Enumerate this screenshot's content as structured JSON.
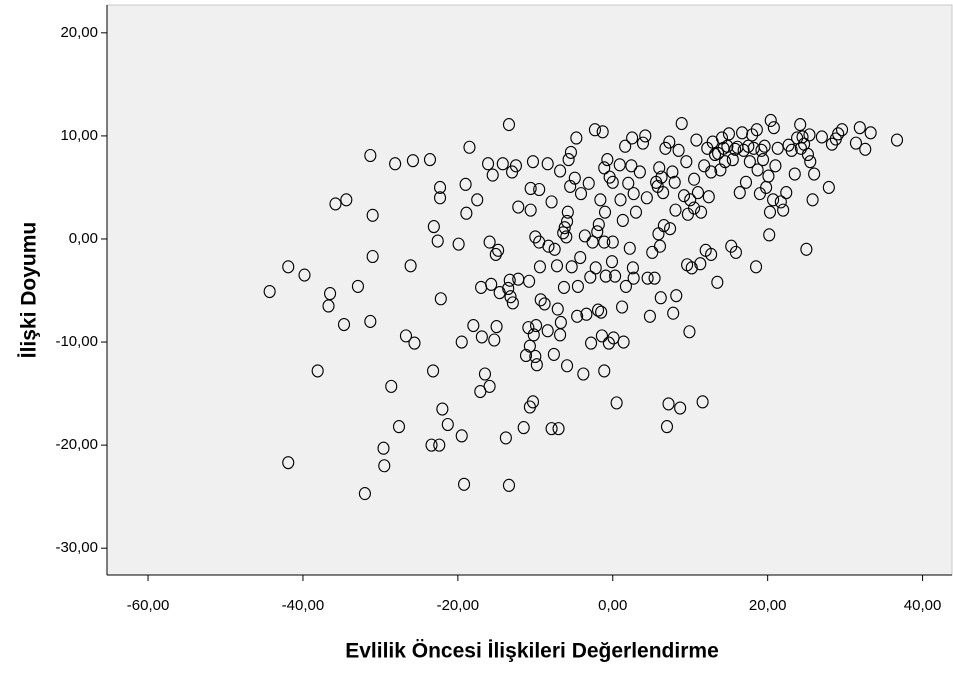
{
  "chart_data": {
    "type": "scatter",
    "x_label": "Evlilik Öncesi İlişkileri Değerlendirme",
    "y_label": "İlişki Doyumu",
    "color": "#000000",
    "background": "#f0f0f0",
    "xlim": [
      -65.3,
      43.8
    ],
    "ylim": [
      -32.6,
      22.7
    ],
    "xticks": [
      {
        "value": -60,
        "label": "-60,00"
      },
      {
        "value": -40,
        "label": "-40,00"
      },
      {
        "value": -20,
        "label": "-20,00"
      },
      {
        "value": 0,
        "label": "0,00"
      },
      {
        "value": 20,
        "label": "20,00"
      },
      {
        "value": 40,
        "label": "40,00"
      }
    ],
    "yticks": [
      {
        "value": -30,
        "label": "-30,00"
      },
      {
        "value": -20,
        "label": "-20,00"
      },
      {
        "value": -10,
        "label": "-10,00"
      },
      {
        "value": 0,
        "label": "0,00"
      },
      {
        "value": 10,
        "label": "10,00"
      },
      {
        "value": 20,
        "label": "20,00"
      }
    ],
    "x": [
      -44.3,
      -41.9,
      -39.8,
      -41.9,
      -38.1,
      -36.7,
      -36.5,
      -35.8,
      -34.4,
      -34.7,
      -32.9,
      -32.0,
      -31.3,
      -31.3,
      -31.0,
      -31.0,
      -29.6,
      -29.5,
      -28.6,
      -28.1,
      -27.6,
      -26.7,
      -26.1,
      -25.8,
      -25.6,
      -23.6,
      -23.4,
      -23.2,
      -23.1,
      -22.6,
      -22.4,
      -22.3,
      -22.3,
      -22.2,
      -22.0,
      -21.3,
      -19.9,
      -19.5,
      -19.5,
      -19.2,
      -19.0,
      -18.9,
      -18.5,
      -18.0,
      -17.5,
      -17.1,
      -17.0,
      -16.9,
      -16.5,
      -16.1,
      -15.9,
      -15.9,
      -15.7,
      -15.5,
      -15.3,
      -15.1,
      -15.0,
      -14.8,
      -14.6,
      -14.2,
      -13.8,
      -13.5,
      -13.4,
      -13.4,
      -13.3,
      -13.2,
      -13.0,
      -12.9,
      -12.5,
      -12.2,
      -12.2,
      -11.5,
      -11.2,
      -10.9,
      -10.8,
      -10.7,
      -10.7,
      -10.6,
      -10.6,
      -10.3,
      -10.3,
      -10.2,
      -10.0,
      -10.0,
      -9.9,
      -9.8,
      -9.5,
      -9.5,
      -9.4,
      -9.3,
      -8.8,
      -8.4,
      -8.4,
      -8.3,
      -7.9,
      -7.9,
      -7.6,
      -7.5,
      -7.2,
      -7.1,
      -7.0,
      -6.8,
      -6.8,
      -6.7,
      -6.4,
      -6.3,
      -6.2,
      -6.0,
      -5.9,
      -5.9,
      -5.8,
      -5.7,
      -5.5,
      -5.4,
      -5.3,
      -4.9,
      -4.7,
      -4.6,
      -4.5,
      -4.2,
      -4.1,
      -3.8,
      -3.6,
      -3.4,
      -3.1,
      -2.9,
      -2.8,
      -2.6,
      -2.3,
      -2.2,
      -2.0,
      -1.9,
      -1.8,
      -1.6,
      -1.5,
      -1.4,
      -1.3,
      -1.1,
      -1.1,
      -1.1,
      -1.0,
      -0.9,
      -0.7,
      -0.5,
      -0.4,
      -0.1,
      0.0,
      0.0,
      0.1,
      0.3,
      0.5,
      0.9,
      1.0,
      1.2,
      1.3,
      1.4,
      1.6,
      1.7,
      2.0,
      2.2,
      2.4,
      2.5,
      2.6,
      2.7,
      2.7,
      3.0,
      3.5,
      3.9,
      4.2,
      4.4,
      4.5,
      4.8,
      5.1,
      5.4,
      5.6,
      5.8,
      5.9,
      6.0,
      6.1,
      6.2,
      6.3,
      6.5,
      6.6,
      6.8,
      7.0,
      7.2,
      7.3,
      7.4,
      7.7,
      7.8,
      8.0,
      8.1,
      8.2,
      8.5,
      8.7,
      8.9,
      9.2,
      9.5,
      9.6,
      9.7,
      9.9,
      10.0,
      10.2,
      10.5,
      10.5,
      10.8,
      11.0,
      11.3,
      11.4,
      11.6,
      11.8,
      12.0,
      12.2,
      12.4,
      12.7,
      12.7,
      12.9,
      13.2,
      13.5,
      13.6,
      13.9,
      14.1,
      14.3,
      14.5,
      14.8,
      15.0,
      15.3,
      15.5,
      15.8,
      15.9,
      16.1,
      16.4,
      16.7,
      16.9,
      17.2,
      17.5,
      17.7,
      18.0,
      18.2,
      18.5,
      18.6,
      18.7,
      19.0,
      19.2,
      19.4,
      19.6,
      19.8,
      20.1,
      20.2,
      20.3,
      20.4,
      20.7,
      20.8,
      21.0,
      21.3,
      21.7,
      22.0,
      22.4,
      22.7,
      23.1,
      23.5,
      23.8,
      24.2,
      24.3,
      24.5,
      24.7,
      25.0,
      25.2,
      25.4,
      25.5,
      25.8,
      26.0,
      27.0,
      27.9,
      28.3,
      28.8,
      29.1,
      29.6,
      31.4,
      31.9,
      32.6,
      33.3,
      36.7
    ],
    "values": [
      -5.1,
      -2.7,
      -3.5,
      -21.7,
      -12.8,
      -6.5,
      -5.3,
      3.4,
      3.8,
      -8.3,
      -4.6,
      -24.7,
      8.1,
      -8.0,
      2.3,
      -1.7,
      -20.3,
      -22.0,
      -14.3,
      7.3,
      -18.2,
      -9.4,
      -2.6,
      7.6,
      -10.1,
      7.7,
      -20.0,
      -12.8,
      1.2,
      -0.2,
      -20.0,
      5.0,
      4.0,
      -5.8,
      -16.5,
      -18.0,
      -0.5,
      -10.0,
      -19.1,
      -23.8,
      5.3,
      2.5,
      8.9,
      -8.4,
      3.8,
      -14.8,
      -4.7,
      -9.5,
      -13.1,
      7.3,
      -14.3,
      -0.3,
      -4.4,
      6.2,
      -9.8,
      -1.5,
      -8.5,
      -1.1,
      -5.2,
      7.3,
      -19.3,
      -4.8,
      11.1,
      -23.9,
      -4.0,
      -5.6,
      6.5,
      -6.2,
      7.1,
      3.1,
      -3.9,
      -18.3,
      -11.3,
      -8.6,
      -4.1,
      -10.4,
      -16.3,
      2.8,
      4.9,
      7.5,
      -15.8,
      -9.3,
      -11.4,
      0.2,
      -8.4,
      -12.2,
      4.8,
      -0.3,
      -2.7,
      -5.9,
      -6.3,
      7.3,
      -8.9,
      -0.7,
      3.6,
      -18.4,
      -11.2,
      -1.0,
      -2.6,
      -6.8,
      -18.4,
      -9.3,
      6.6,
      -8.1,
      0.6,
      -4.7,
      1.1,
      0.2,
      1.7,
      -12.3,
      2.6,
      7.7,
      5.1,
      8.4,
      -2.7,
      5.9,
      9.8,
      -7.5,
      -4.6,
      -1.8,
      4.4,
      -13.1,
      0.3,
      -7.3,
      5.4,
      -3.7,
      -10.1,
      -0.3,
      10.6,
      -2.8,
      0.7,
      -6.9,
      1.4,
      3.8,
      -7.1,
      -9.4,
      10.4,
      -0.3,
      6.9,
      -12.8,
      2.6,
      -3.6,
      7.7,
      -10.1,
      6.0,
      -2.2,
      5.5,
      -0.3,
      -9.6,
      -3.6,
      -15.9,
      7.2,
      3.8,
      -6.6,
      1.8,
      -10.0,
      9.0,
      -4.6,
      5.4,
      -0.9,
      7.1,
      9.8,
      -2.8,
      -3.8,
      4.4,
      2.6,
      6.5,
      9.3,
      10.0,
      4.0,
      -3.8,
      -7.5,
      -1.3,
      -3.8,
      5.5,
      5.1,
      0.5,
      6.9,
      -0.7,
      -5.7,
      6.0,
      4.5,
      1.3,
      8.8,
      -18.2,
      -16.0,
      9.4,
      1.0,
      6.5,
      -7.2,
      5.5,
      2.8,
      -5.5,
      8.6,
      -16.4,
      11.2,
      4.2,
      7.5,
      -2.5,
      2.4,
      -9.0,
      3.8,
      -2.8,
      5.8,
      3.0,
      9.6,
      4.5,
      -2.4,
      2.6,
      -15.8,
      7.1,
      -1.1,
      8.8,
      4.1,
      6.5,
      -1.5,
      9.4,
      8.2,
      -4.2,
      8.3,
      6.7,
      9.8,
      8.8,
      7.5,
      9.0,
      10.2,
      -0.7,
      7.7,
      8.7,
      -1.3,
      8.9,
      4.5,
      10.3,
      8.6,
      5.5,
      9.0,
      7.5,
      10.1,
      8.8,
      -2.7,
      10.6,
      6.7,
      4.4,
      8.6,
      7.7,
      9.0,
      5.0,
      6.1,
      0.4,
      2.6,
      11.5,
      3.8,
      10.8,
      7.1,
      8.8,
      3.6,
      2.8,
      4.5,
      9.1,
      8.6,
      6.3,
      9.8,
      11.1,
      8.8,
      9.9,
      9.2,
      -1.0,
      8.2,
      10.1,
      7.5,
      3.8,
      6.3,
      9.9,
      5.0,
      9.2,
      9.7,
      10.2,
      10.6,
      9.3,
      10.8,
      8.7,
      10.3,
      9.6
    ]
  }
}
